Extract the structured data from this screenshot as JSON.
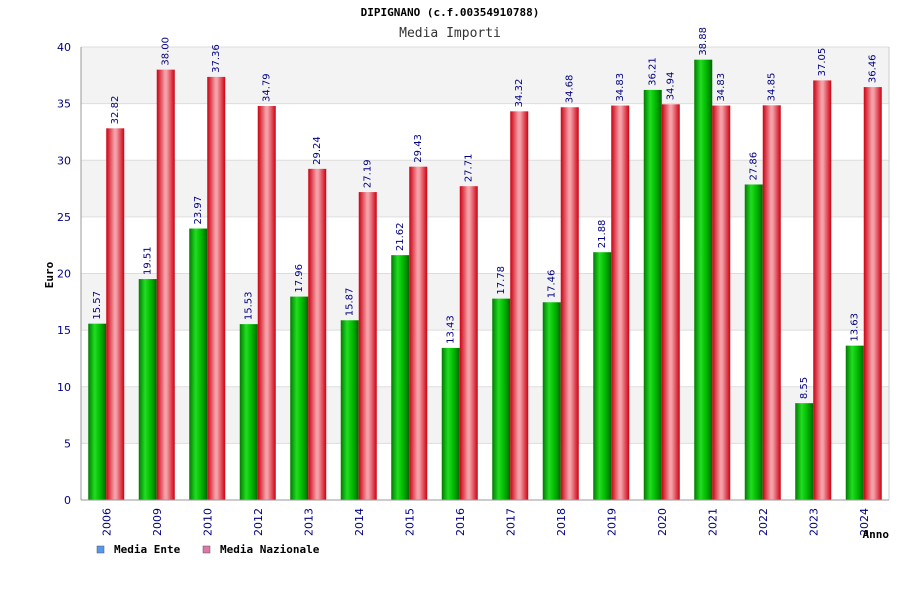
{
  "chart_data": {
    "type": "bar",
    "title": "DIPIGNANO (c.f.00354910788)",
    "subtitle": "Media Importi",
    "xlabel": "Anno",
    "ylabel": "Euro",
    "ylim": [
      0,
      40
    ],
    "yticks": [
      0,
      5,
      10,
      15,
      20,
      25,
      30,
      35,
      40
    ],
    "grid": true,
    "legend_position": "bottom-left",
    "categories": [
      "2006",
      "2009",
      "2010",
      "2012",
      "2013",
      "2014",
      "2015",
      "2016",
      "2017",
      "2018",
      "2019",
      "2020",
      "2021",
      "2022",
      "2023",
      "2024"
    ],
    "series": [
      {
        "name": "Media Ente",
        "color": "#00aa00",
        "legend_color": "#5599ee",
        "values": [
          15.57,
          19.51,
          23.97,
          15.53,
          17.96,
          15.87,
          21.62,
          13.43,
          17.78,
          17.46,
          21.88,
          36.21,
          38.88,
          27.86,
          8.55,
          13.63
        ],
        "labels": [
          "15.57",
          "19.51",
          "23.97",
          "15.53",
          "17.96",
          "15.87",
          "21.62",
          "13.43",
          "17.78",
          "17.46",
          "21.88",
          "36.21",
          "38.88",
          "27.86",
          "8.55",
          "13.63"
        ]
      },
      {
        "name": "Media Nazionale",
        "color": "#ee2233",
        "legend_color": "#dd77aa",
        "values": [
          32.82,
          38.0,
          37.36,
          34.79,
          29.24,
          27.19,
          29.43,
          27.71,
          34.32,
          34.68,
          34.83,
          34.94,
          34.83,
          34.85,
          37.05,
          36.46
        ],
        "labels": [
          "32.82",
          "38.00",
          "37.36",
          "34.79",
          "29.24",
          "27.19",
          "29.43",
          "27.71",
          "34.32",
          "34.68",
          "34.83",
          "34.94",
          "34.83",
          "34.85",
          "37.05",
          "36.46"
        ]
      }
    ]
  }
}
